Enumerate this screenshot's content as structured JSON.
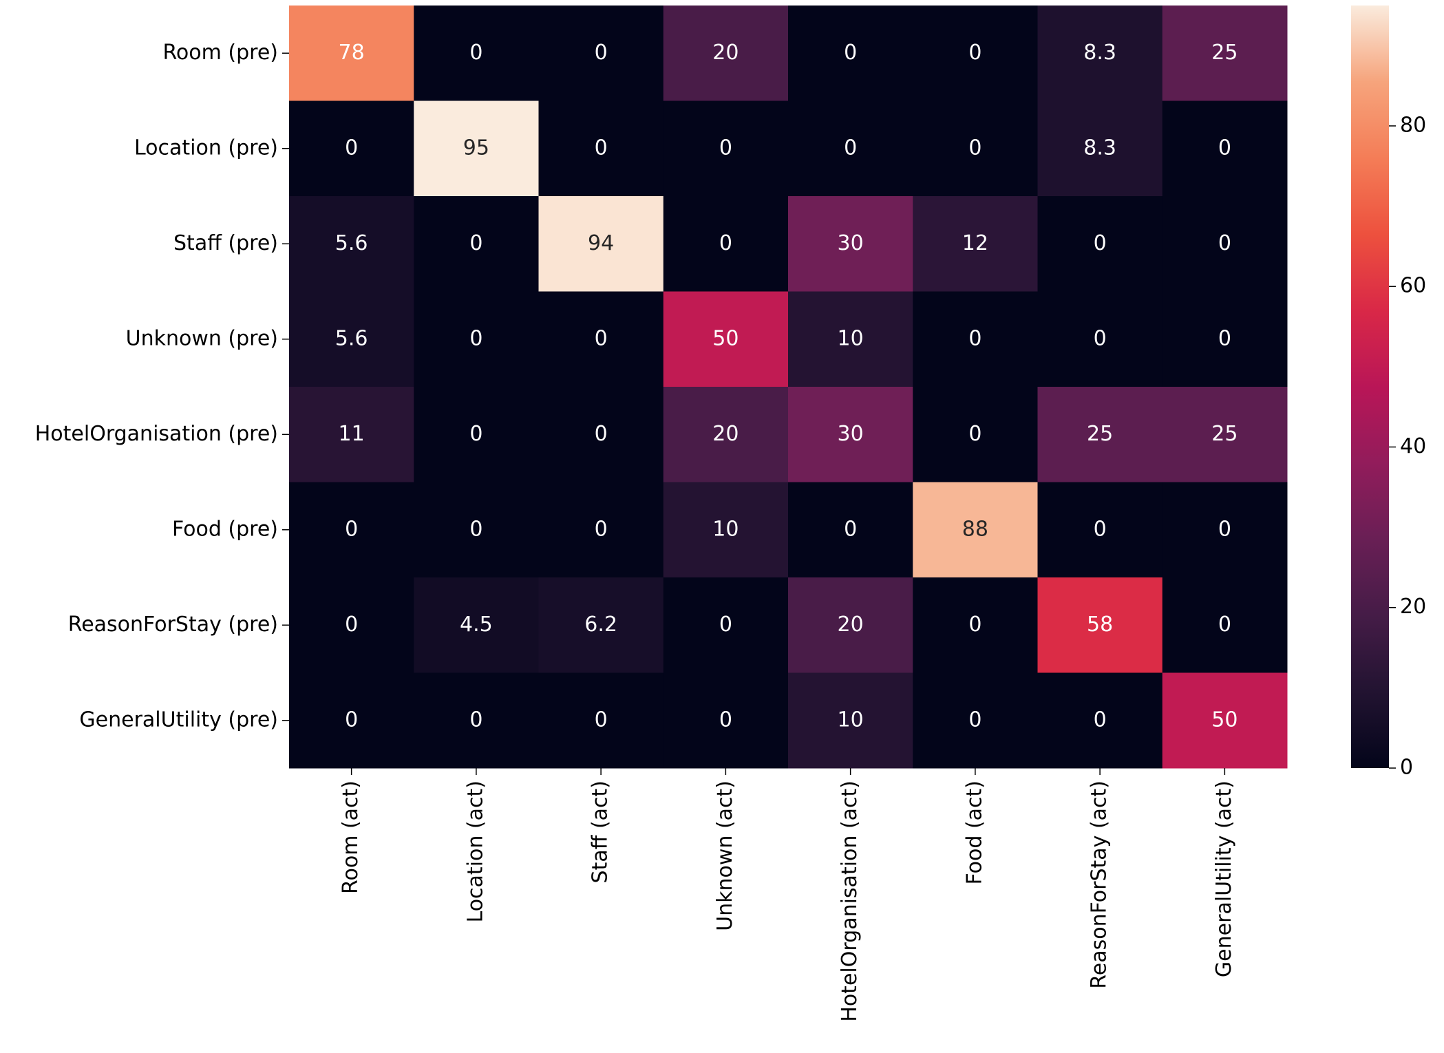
{
  "chart_data": {
    "type": "heatmap",
    "x_categories": [
      "Room (act)",
      "Location (act)",
      "Staff (act)",
      "Unknown (act)",
      "HotelOrganisation (act)",
      "Food (act)",
      "ReasonForStay (act)",
      "GeneralUtility (act)"
    ],
    "y_categories": [
      "Room (pre)",
      "Location (pre)",
      "Staff (pre)",
      "Unknown (pre)",
      "HotelOrganisation (pre)",
      "Food (pre)",
      "ReasonForStay (pre)",
      "GeneralUtility (pre)"
    ],
    "values": [
      [
        78,
        0,
        0,
        20,
        0,
        0,
        8.3,
        25
      ],
      [
        0,
        95,
        0,
        0,
        0,
        0,
        8.3,
        0
      ],
      [
        5.6,
        0,
        94,
        0,
        30,
        12,
        0,
        0
      ],
      [
        5.6,
        0,
        0,
        50,
        10,
        0,
        0,
        0
      ],
      [
        11,
        0,
        0,
        20,
        30,
        0,
        25,
        25
      ],
      [
        0,
        0,
        0,
        10,
        0,
        88,
        0,
        0
      ],
      [
        0,
        4.5,
        6.2,
        0,
        20,
        0,
        58,
        0
      ],
      [
        0,
        0,
        0,
        0,
        10,
        0,
        0,
        50
      ]
    ],
    "zlim": [
      0,
      95
    ],
    "zticks": [
      0,
      20,
      40,
      60,
      80
    ],
    "colorscale": [
      "#03051a",
      "#221331",
      "#451c47",
      "#691f55",
      "#921c5b",
      "#b91657",
      "#d92847",
      "#ed513e",
      "#f47d57",
      "#f6a47c",
      "#faebdd"
    ]
  }
}
